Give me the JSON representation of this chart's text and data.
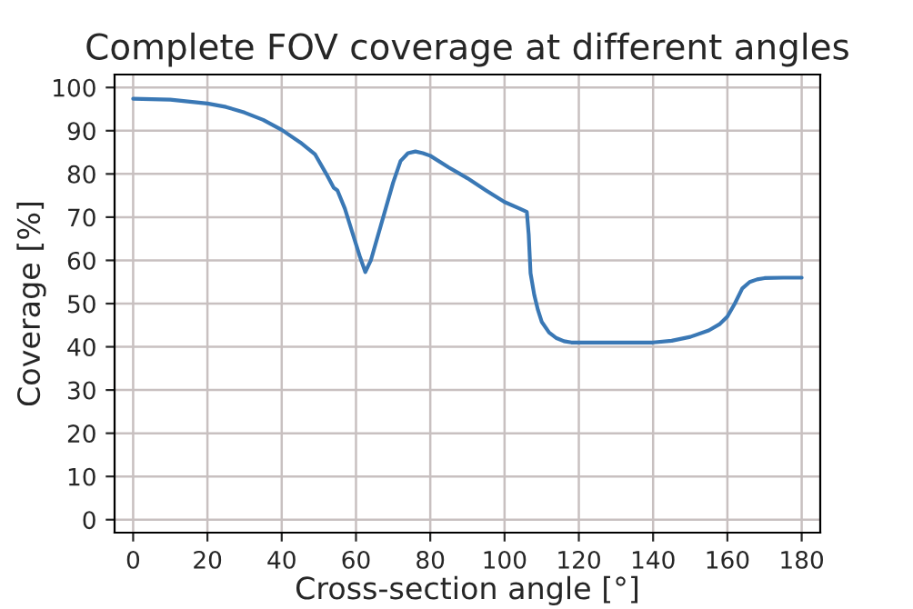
{
  "chart_data": {
    "type": "line",
    "title": "Complete FOV coverage at different angles",
    "xlabel": "Cross-section angle [°]",
    "ylabel": "Coverage [%]",
    "series": [
      {
        "color": "#3a78b5",
        "x": [
          0,
          10,
          20,
          25,
          30,
          35,
          40,
          45,
          49,
          52,
          54,
          55,
          57,
          59,
          61,
          62.5,
          64,
          66,
          68,
          70,
          72,
          74,
          76,
          78,
          80,
          85,
          90,
          95,
          100,
          104,
          106,
          106.5,
          107,
          108,
          109,
          110,
          112,
          114,
          116,
          118,
          120,
          130,
          140,
          145,
          150,
          155,
          158,
          160,
          162,
          164,
          166,
          168,
          170,
          175,
          180
        ],
        "values": [
          97.4,
          97.2,
          96.3,
          95.5,
          94.2,
          92.5,
          90.2,
          87.3,
          84.5,
          80,
          76.8,
          76.2,
          72,
          66.5,
          61,
          57.3,
          60,
          66,
          72,
          78,
          83,
          84.8,
          85.2,
          84.8,
          84.2,
          81.5,
          79,
          76.2,
          73.5,
          72,
          71.2,
          66,
          57,
          52,
          48.5,
          45.8,
          43.3,
          42,
          41.3,
          41,
          41,
          41,
          41,
          41.4,
          42.3,
          43.8,
          45.3,
          47,
          50,
          53.5,
          55,
          55.6,
          55.9,
          56,
          56
        ]
      }
    ],
    "xlim": [
      -5,
      185
    ],
    "ylim": [
      -3,
      103
    ],
    "xticks": [
      0,
      20,
      40,
      60,
      80,
      100,
      120,
      140,
      160,
      180
    ],
    "yticks": [
      0,
      10,
      20,
      30,
      40,
      50,
      60,
      70,
      80,
      90,
      100
    ],
    "grid": true,
    "marker": "none",
    "line_style": "solid"
  }
}
